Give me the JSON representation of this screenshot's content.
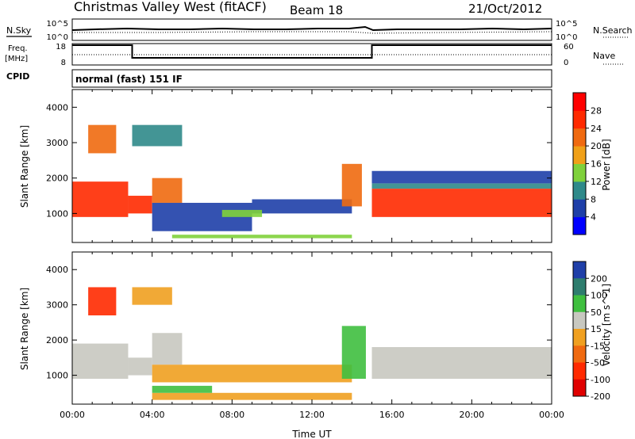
{
  "header": {
    "station": "Christmas Valley West (fitACF)",
    "beam": "Beam 18",
    "date": "21/Oct/2012"
  },
  "noise_panel": {
    "left_label": "N.Sky",
    "right_label": "N.Search",
    "left_ticks": [
      "10^5",
      "10^0"
    ],
    "right_ticks": [
      "10^5",
      "10^0"
    ]
  },
  "freq_panel": {
    "left_label_1": "Freq.",
    "left_label_2": "[MHz]",
    "right_label": "Nave",
    "left_ticks": [
      "18",
      "8"
    ],
    "right_ticks": [
      "60",
      "0"
    ],
    "freq_mhz": [
      {
        "t": 0,
        "v": 18
      },
      {
        "t": 3.0,
        "v": 18
      },
      {
        "t": 3.0,
        "v": 10
      },
      {
        "t": 15.0,
        "v": 10
      },
      {
        "t": 15.0,
        "v": 18
      },
      {
        "t": 24,
        "v": 18
      }
    ]
  },
  "cpid": {
    "label": "CPID",
    "value": "normal (fast) 151 IF"
  },
  "chart_data": [
    {
      "type": "heatmap",
      "name": "power",
      "xlabel": "",
      "ylabel": "Slant Range [km]",
      "xlim": [
        0,
        24
      ],
      "ylim": [
        180,
        4500
      ],
      "y_ticks": [
        "1000",
        "2000",
        "3000",
        "4000"
      ],
      "colorbar_label": "Power [dB]",
      "colorbar_ticks": [
        "4",
        "8",
        "12",
        "16",
        "20",
        "24",
        "28"
      ],
      "colorbar_colors": [
        "#0000ff",
        "#1e3fa8",
        "#2f8a8a",
        "#7fd13b",
        "#f0a018",
        "#f06a10",
        "#ff2a00",
        "#ff0000"
      ],
      "regions": [
        {
          "t0": 0.0,
          "t1": 2.8,
          "r0": 900,
          "r1": 1900,
          "color": "#ff2a00"
        },
        {
          "t0": 2.8,
          "t1": 4.0,
          "r0": 1000,
          "r1": 1500,
          "color": "#ff2a00"
        },
        {
          "t0": 4.0,
          "t1": 5.5,
          "r0": 1300,
          "r1": 2000,
          "color": "#f06a10"
        },
        {
          "t0": 0.8,
          "t1": 2.2,
          "r0": 2700,
          "r1": 3500,
          "color": "#f06a10"
        },
        {
          "t0": 3.0,
          "t1": 5.5,
          "r0": 2900,
          "r1": 3500,
          "color": "#2f8a8a"
        },
        {
          "t0": 4.0,
          "t1": 9.0,
          "r0": 500,
          "r1": 1300,
          "color": "#1e3fa8"
        },
        {
          "t0": 9.0,
          "t1": 14.0,
          "r0": 1000,
          "r1": 1400,
          "color": "#1e3fa8"
        },
        {
          "t0": 7.5,
          "t1": 9.5,
          "r0": 900,
          "r1": 1100,
          "color": "#7fd13b"
        },
        {
          "t0": 5.0,
          "t1": 14.0,
          "r0": 300,
          "r1": 400,
          "color": "#7fd13b"
        },
        {
          "t0": 13.5,
          "t1": 14.5,
          "r0": 1200,
          "r1": 2400,
          "color": "#f06a10"
        },
        {
          "t0": 15.0,
          "t1": 24.0,
          "r0": 900,
          "r1": 1700,
          "color": "#ff2a00"
        },
        {
          "t0": 15.0,
          "t1": 24.0,
          "r0": 1700,
          "r1": 1850,
          "color": "#2f8a8a"
        },
        {
          "t0": 15.0,
          "t1": 24.0,
          "r0": 1850,
          "r1": 2200,
          "color": "#1e3fa8"
        }
      ]
    },
    {
      "type": "heatmap",
      "name": "velocity",
      "xlabel": "Time UT",
      "ylabel": "Slant Range [km]",
      "xlim": [
        0,
        24
      ],
      "ylim": [
        180,
        4500
      ],
      "x_ticks": [
        "00:00",
        "04:00",
        "08:00",
        "12:00",
        "16:00",
        "20:00",
        "00:00"
      ],
      "y_ticks": [
        "1000",
        "2000",
        "3000",
        "4000"
      ],
      "colorbar_label": "Velocity [m s^-1]",
      "colorbar_ticks": [
        "200",
        "100",
        "50",
        "15",
        "-15",
        "-50",
        "-100",
        "-200"
      ],
      "colorbar_colors": [
        "#1f3fa8",
        "#2e7d6e",
        "#3fbf3f",
        "#c8c8c0",
        "#f0a020",
        "#f06a10",
        "#ff2a00",
        "#e00000"
      ],
      "regions": [
        {
          "t0": 0.0,
          "t1": 2.8,
          "r0": 900,
          "r1": 1900,
          "color": "#c8c8c0"
        },
        {
          "t0": 2.8,
          "t1": 4.0,
          "r0": 1000,
          "r1": 1500,
          "color": "#c8c8c0"
        },
        {
          "t0": 4.0,
          "t1": 5.5,
          "r0": 1300,
          "r1": 2200,
          "color": "#c8c8c0"
        },
        {
          "t0": 0.8,
          "t1": 2.2,
          "r0": 2700,
          "r1": 3500,
          "color": "#ff2a00"
        },
        {
          "t0": 3.0,
          "t1": 5.0,
          "r0": 3000,
          "r1": 3500,
          "color": "#f0a020"
        },
        {
          "t0": 4.0,
          "t1": 14.0,
          "r0": 800,
          "r1": 1300,
          "color": "#f0a020"
        },
        {
          "t0": 4.0,
          "t1": 14.0,
          "r0": 300,
          "r1": 500,
          "color": "#f0a020"
        },
        {
          "t0": 13.5,
          "t1": 14.7,
          "r0": 900,
          "r1": 2400,
          "color": "#3fbf3f"
        },
        {
          "t0": 15.0,
          "t1": 24.0,
          "r0": 900,
          "r1": 1800,
          "color": "#c8c8c0"
        },
        {
          "t0": 4.0,
          "t1": 7.0,
          "r0": 500,
          "r1": 700,
          "color": "#3fbf3f"
        }
      ]
    }
  ]
}
